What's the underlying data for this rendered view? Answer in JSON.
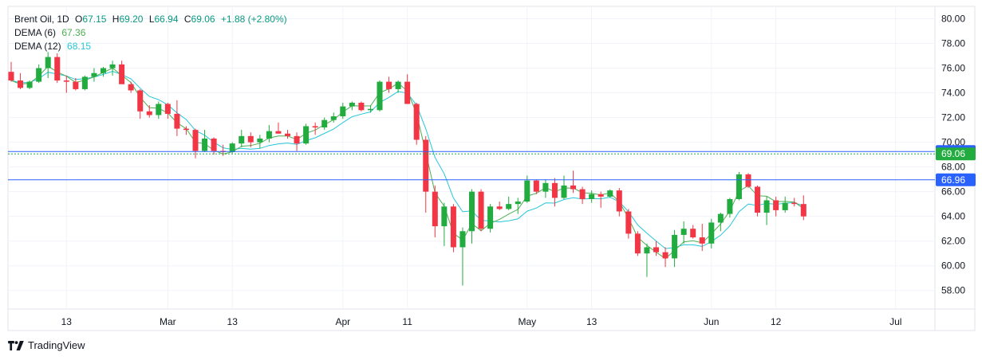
{
  "legend": {
    "title": "Brent Oil, 1D",
    "open_label": "O",
    "open": "67.15",
    "high_label": "H",
    "high": "69.20",
    "low_label": "L",
    "low": "66.94",
    "close_label": "C",
    "close": "69.06",
    "change": "+1.88 (+2.80%)",
    "dema6_label": "DEMA (6)",
    "dema6_value": "67.36",
    "dema12_label": "DEMA (12)",
    "dema12_value": "68.15"
  },
  "watermark": {
    "text": "TradingView",
    "icon": "tradingview-logo-icon"
  },
  "colors": {
    "up": "#22ab3e",
    "down": "#f23645",
    "dema6": "#4caf50",
    "dema12": "#26c6da",
    "current_price_badge": "#22ab3e",
    "marker_badge": "#2962ff",
    "grid": "#f0f3fa"
  },
  "chart_data": {
    "type": "candlestick",
    "title": "Brent Oil, 1D",
    "ylim": [
      56.5,
      81.0
    ],
    "y_ticks": [
      "80.00",
      "78.00",
      "76.00",
      "74.00",
      "72.00",
      "70.00",
      "68.00",
      "66.00",
      "64.00",
      "62.00",
      "60.00",
      "58.00"
    ],
    "x_tick_labels": [
      {
        "i": 6,
        "label": "13"
      },
      {
        "i": 17,
        "label": "Mar"
      },
      {
        "i": 24,
        "label": "13"
      },
      {
        "i": 36,
        "label": "Apr"
      },
      {
        "i": 43,
        "label": "11"
      },
      {
        "i": 56,
        "label": "May"
      },
      {
        "i": 63,
        "label": "13"
      },
      {
        "i": 76,
        "label": "Jun"
      },
      {
        "i": 83,
        "label": "12"
      },
      {
        "i": 96,
        "label": "Jul"
      }
    ],
    "price_markers": [
      {
        "value": 69.25,
        "label": "69.25",
        "style": "blue"
      },
      {
        "value": 69.06,
        "label": "69.06",
        "style": "green"
      },
      {
        "value": 66.96,
        "label": "66.96",
        "style": "blue"
      }
    ],
    "ohlc": [
      [
        75.7,
        76.5,
        74.9,
        75.0
      ],
      [
        75.0,
        75.6,
        74.3,
        74.4
      ],
      [
        74.4,
        75.0,
        74.3,
        74.9
      ],
      [
        74.9,
        76.3,
        74.8,
        76.0
      ],
      [
        76.0,
        77.3,
        75.2,
        76.9
      ],
      [
        76.9,
        77.2,
        74.8,
        75.0
      ],
      [
        75.0,
        75.4,
        74.0,
        74.9
      ],
      [
        74.9,
        75.2,
        74.2,
        74.3
      ],
      [
        74.3,
        75.4,
        74.2,
        75.3
      ],
      [
        75.3,
        76.0,
        74.9,
        75.6
      ],
      [
        75.6,
        76.1,
        75.3,
        76.0
      ],
      [
        76.0,
        76.6,
        75.4,
        76.3
      ],
      [
        76.3,
        76.6,
        74.9,
        74.7
      ],
      [
        74.7,
        74.9,
        74.0,
        74.2
      ],
      [
        74.2,
        74.3,
        71.9,
        72.5
      ],
      [
        72.5,
        73.0,
        72.0,
        72.2
      ],
      [
        72.2,
        73.3,
        71.9,
        73.1
      ],
      [
        73.1,
        73.2,
        71.9,
        72.3
      ],
      [
        72.3,
        73.4,
        70.5,
        71.1
      ],
      [
        71.1,
        71.3,
        70.6,
        71.0
      ],
      [
        71.0,
        71.1,
        68.7,
        69.3
      ],
      [
        69.3,
        71.0,
        69.2,
        70.3
      ],
      [
        70.3,
        70.4,
        69.0,
        69.3
      ],
      [
        69.3,
        69.8,
        68.9,
        69.2
      ],
      [
        69.2,
        70.0,
        69.1,
        69.9
      ],
      [
        69.9,
        71.0,
        69.6,
        70.5
      ],
      [
        70.5,
        70.8,
        69.6,
        70.0
      ],
      [
        70.0,
        70.6,
        69.5,
        70.3
      ],
      [
        70.3,
        71.4,
        70.0,
        70.9
      ],
      [
        70.9,
        71.6,
        70.7,
        70.7
      ],
      [
        70.7,
        71.0,
        70.3,
        70.5
      ],
      [
        70.5,
        70.8,
        69.3,
        69.9
      ],
      [
        69.9,
        71.5,
        69.8,
        71.3
      ],
      [
        71.3,
        71.6,
        70.6,
        71.2
      ],
      [
        71.2,
        72.0,
        71.0,
        71.8
      ],
      [
        71.8,
        72.4,
        71.6,
        72.1
      ],
      [
        72.1,
        73.2,
        71.9,
        72.9
      ],
      [
        72.9,
        73.3,
        72.6,
        73.2
      ],
      [
        73.2,
        73.3,
        72.5,
        72.6
      ],
      [
        72.6,
        73.0,
        72.4,
        72.7
      ],
      [
        72.6,
        75.0,
        72.5,
        74.9
      ],
      [
        74.9,
        75.3,
        74.0,
        74.3
      ],
      [
        74.3,
        75.0,
        74.0,
        74.9
      ],
      [
        74.9,
        75.5,
        73.3,
        73.1
      ],
      [
        73.1,
        73.2,
        69.8,
        70.2
      ],
      [
        70.2,
        70.5,
        64.3,
        66.0
      ],
      [
        66.0,
        66.5,
        62.3,
        63.2
      ],
      [
        63.2,
        65.1,
        61.6,
        64.8
      ],
      [
        64.8,
        65.0,
        61.1,
        61.5
      ],
      [
        61.5,
        63.1,
        58.4,
        62.8
      ],
      [
        62.8,
        66.2,
        61.8,
        66.0
      ],
      [
        66.0,
        66.2,
        62.8,
        63.0
      ],
      [
        63.0,
        65.0,
        62.7,
        64.8
      ],
      [
        64.8,
        65.2,
        64.5,
        64.6
      ],
      [
        64.6,
        65.6,
        64.5,
        65.0
      ],
      [
        65.0,
        65.5,
        64.2,
        65.2
      ],
      [
        65.2,
        67.3,
        65.1,
        66.9
      ],
      [
        66.9,
        67.0,
        65.8,
        66.0
      ],
      [
        66.0,
        67.0,
        65.5,
        66.7
      ],
      [
        66.7,
        67.1,
        64.8,
        65.5
      ],
      [
        65.5,
        67.3,
        65.4,
        66.5
      ],
      [
        66.5,
        67.7,
        65.9,
        66.2
      ],
      [
        66.2,
        66.4,
        65.0,
        65.4
      ],
      [
        65.4,
        66.1,
        65.1,
        65.8
      ],
      [
        65.8,
        66.0,
        64.7,
        65.6
      ],
      [
        65.6,
        66.2,
        65.5,
        66.1
      ],
      [
        66.1,
        66.3,
        64.0,
        64.4
      ],
      [
        64.4,
        64.6,
        62.2,
        62.6
      ],
      [
        62.6,
        62.8,
        60.8,
        61.0
      ],
      [
        61.0,
        61.8,
        59.1,
        61.5
      ],
      [
        61.5,
        62.0,
        60.8,
        61.1
      ],
      [
        61.1,
        61.5,
        59.9,
        60.6
      ],
      [
        60.6,
        62.9,
        59.9,
        62.5
      ],
      [
        62.5,
        63.6,
        61.8,
        63.0
      ],
      [
        63.0,
        63.3,
        62.2,
        62.3
      ],
      [
        62.3,
        63.4,
        61.2,
        61.8
      ],
      [
        61.8,
        63.8,
        61.4,
        63.5
      ],
      [
        63.5,
        64.3,
        62.8,
        64.2
      ],
      [
        64.2,
        65.5,
        63.9,
        65.4
      ],
      [
        65.4,
        67.6,
        65.3,
        67.4
      ],
      [
        67.4,
        67.5,
        66.3,
        66.4
      ],
      [
        66.4,
        66.5,
        64.0,
        64.3
      ],
      [
        64.3,
        65.6,
        63.3,
        65.3
      ],
      [
        65.3,
        65.6,
        64.0,
        64.5
      ],
      [
        64.5,
        65.6,
        64.3,
        65.1
      ],
      [
        65.1,
        65.5,
        64.8,
        65.0
      ],
      [
        65.0,
        65.7,
        63.7,
        64.0
      ]
    ]
  }
}
